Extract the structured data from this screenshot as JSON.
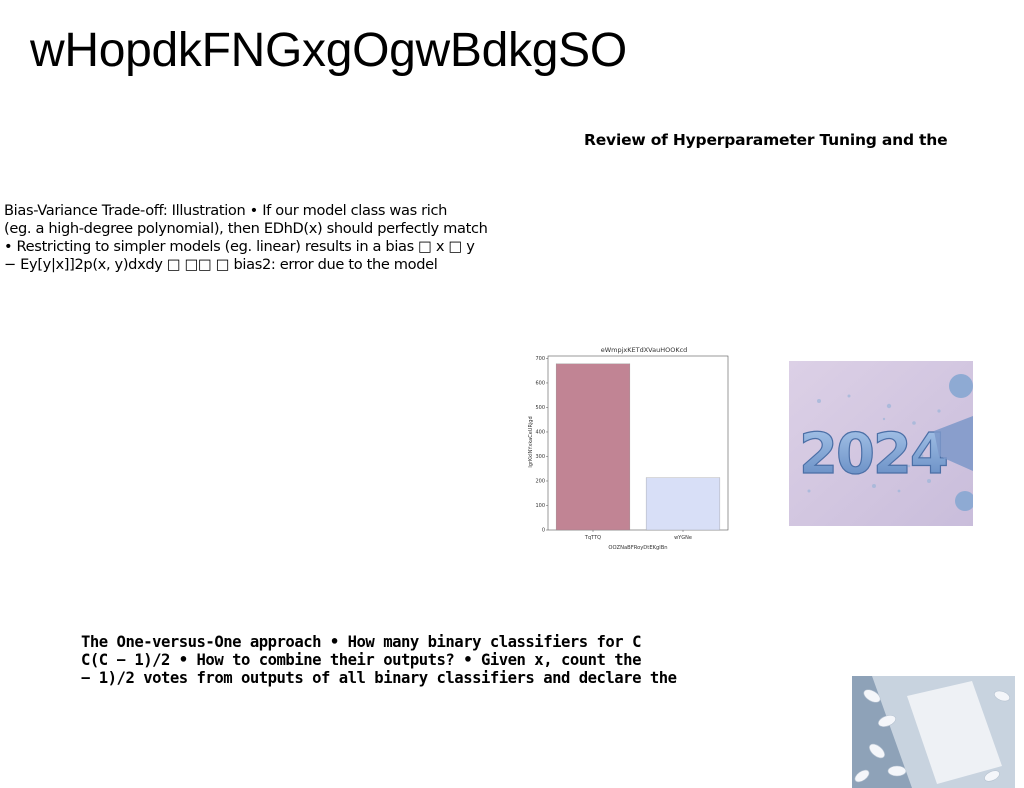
{
  "page": {
    "title": "wHopdkFNGxgOgwBdkgSO",
    "subtitle": "Review of Hyperparameter Tuning and the"
  },
  "bias_block": {
    "lines": [
      "Bias-Variance Trade-off: Illustration • If our model class was rich",
      "(eg. a high-degree polynomial), then EDhD(x) should perfectly match",
      "• Restricting to simpler models (eg. linear) results in a bias □ x □ y",
      "− Ey[y|x]]2p(x, y)dxdy □ □□ □ bias2: error due to the model"
    ]
  },
  "ovo_block": {
    "lines": [
      "The One-versus-One approach • How many binary classifiers for C",
      "C(C − 1)/2 • How to combine their outputs? • Given x, count the",
      "− 1)/2 votes from outputs of all binary classifiers and declare the"
    ]
  },
  "chart_data": {
    "type": "bar",
    "title": "eWmpjxKETdXVauHOOKcd",
    "xlabel": "OOZNaBFRoyDtEKglBn",
    "ylabel": "lgrKkINYxkaCeURjgd",
    "categories": [
      "TqTTQ",
      "wYGNe"
    ],
    "values": [
      678,
      213
    ],
    "colors": [
      "#c18494",
      "#d8dff7"
    ],
    "ylim": [
      0,
      710
    ],
    "yticks": [
      0,
      100,
      200,
      300,
      400,
      500,
      600,
      700
    ],
    "ytick_labels": [
      "0",
      "100",
      "200",
      "300",
      "400",
      "500",
      "600",
      "700"
    ],
    "grid": false
  },
  "images": {
    "new_year": {
      "icon": "new-year-2024-photo",
      "text": "2024"
    },
    "pills": {
      "icon": "pill-box-photo"
    }
  }
}
